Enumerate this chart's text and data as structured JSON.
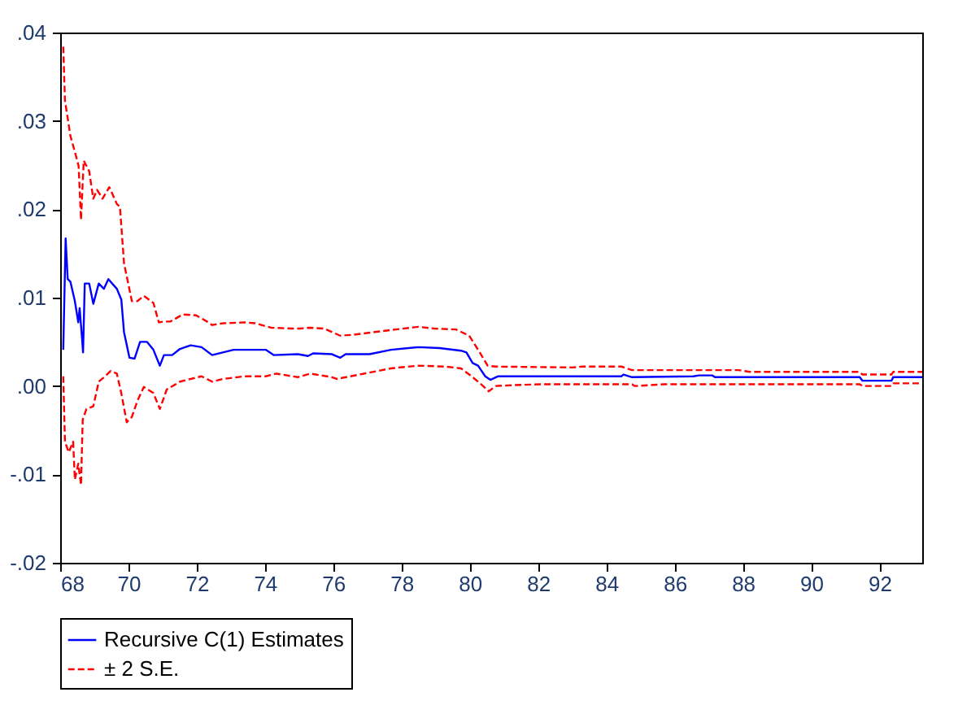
{
  "chart_data": {
    "type": "line",
    "xlim": [
      68,
      93.25
    ],
    "ylim": [
      -0.02,
      0.04
    ],
    "xticks": [
      68,
      70,
      72,
      74,
      76,
      78,
      80,
      82,
      84,
      86,
      88,
      90,
      92
    ],
    "yticks": [
      {
        "value": -0.02,
        "label": "-.02"
      },
      {
        "value": -0.01,
        "label": "-.01"
      },
      {
        "value": 0,
        "label": ".00"
      },
      {
        "value": 0.01,
        "label": ".01"
      },
      {
        "value": 0.02,
        "label": ".02"
      },
      {
        "value": 0.03,
        "label": ".03"
      },
      {
        "value": 0.04,
        "label": ".04"
      }
    ],
    "grid": false,
    "legend": "bottom",
    "marker": "none",
    "series": [
      {
        "name": "Recursive C(1) Estimates",
        "color": "#0000ff",
        "line_style": "solid",
        "x": [
          68.09,
          68.16,
          68.22,
          68.3,
          68.43,
          68.53,
          68.57,
          68.64,
          68.67,
          68.72,
          68.85,
          68.97,
          69.13,
          69.28,
          69.41,
          69.66,
          69.79,
          69.87,
          70.03,
          70.18,
          70.34,
          70.54,
          70.73,
          70.92,
          71.04,
          71.28,
          71.51,
          71.82,
          72.14,
          72.45,
          73.08,
          74.02,
          74.26,
          74.96,
          75.26,
          75.41,
          75.96,
          76.2,
          76.36,
          77.06,
          77.69,
          78.49,
          79.11,
          79.74,
          79.9,
          80.08,
          80.24,
          80.45,
          80.6,
          80.83,
          84.44,
          84.5,
          84.75,
          86.55,
          86.71,
          87.1,
          87.18,
          91.42,
          91.5,
          92.35,
          92.4,
          93.25
        ],
        "values": [
          0.0041,
          0.0167,
          0.0121,
          0.0118,
          0.0096,
          0.0072,
          0.0088,
          0.0054,
          0.0038,
          0.0116,
          0.0116,
          0.0093,
          0.0116,
          0.011,
          0.0121,
          0.011,
          0.0098,
          0.0061,
          0.0032,
          0.0031,
          0.005,
          0.005,
          0.0041,
          0.0023,
          0.0035,
          0.0035,
          0.0042,
          0.0046,
          0.0044,
          0.0035,
          0.0041,
          0.0041,
          0.0035,
          0.0036,
          0.0034,
          0.0037,
          0.0036,
          0.0032,
          0.0036,
          0.0036,
          0.0041,
          0.0044,
          0.0043,
          0.004,
          0.0038,
          0.0026,
          0.0023,
          0.0011,
          0.0007,
          0.0011,
          0.0011,
          0.0013,
          0.001,
          0.0011,
          0.0012,
          0.0012,
          0.001,
          0.001,
          0.0006,
          0.0006,
          0.001,
          0.001
        ]
      },
      {
        "name": "± 2 S.E.",
        "color": "#ff0000",
        "line_style": "dashed",
        "x": [
          68.09,
          68.14,
          68.3,
          68.43,
          68.54,
          68.61,
          68.69,
          68.85,
          68.97,
          69.08,
          69.24,
          69.44,
          69.66,
          69.75,
          69.87,
          70.1,
          70.26,
          70.45,
          70.73,
          70.89,
          71.04,
          71.23,
          71.59,
          71.98,
          72.3,
          72.45,
          72.77,
          73.4,
          73.71,
          74.18,
          74.8,
          75.02,
          75.33,
          75.73,
          76.2,
          76.59,
          77.61,
          78.49,
          78.96,
          79.59,
          79.98,
          80.29,
          80.52,
          80.76,
          83.0,
          83.3,
          84.44,
          84.75,
          87.88,
          88.2,
          91.42,
          91.5,
          92.35,
          92.4,
          93.25
        ],
        "values": [
          0.0384,
          0.0323,
          0.0283,
          0.0265,
          0.0249,
          0.0188,
          0.0255,
          0.0243,
          0.0212,
          0.0222,
          0.0212,
          0.0225,
          0.0206,
          0.0203,
          0.0139,
          0.0096,
          0.0096,
          0.0102,
          0.0094,
          0.0072,
          0.0073,
          0.0073,
          0.0081,
          0.008,
          0.0073,
          0.0069,
          0.0071,
          0.0072,
          0.0071,
          0.0066,
          0.0065,
          0.0065,
          0.0066,
          0.0065,
          0.0057,
          0.0058,
          0.0063,
          0.0067,
          0.0065,
          0.0064,
          0.0057,
          0.0038,
          0.0023,
          0.0022,
          0.0021,
          0.0022,
          0.0022,
          0.0018,
          0.0018,
          0.0016,
          0.0016,
          0.0013,
          0.0013,
          0.0016,
          0.0016
        ]
      },
      {
        "color": "#ff0000",
        "line_style": "dashed",
        "x": [
          68.09,
          68.14,
          68.25,
          68.38,
          68.43,
          68.53,
          68.61,
          68.66,
          68.77,
          68.97,
          69.13,
          69.32,
          69.48,
          69.66,
          69.79,
          69.95,
          70.1,
          70.26,
          70.45,
          70.73,
          70.92,
          71.12,
          71.51,
          72.14,
          72.45,
          72.77,
          73.4,
          74.02,
          74.33,
          74.96,
          75.33,
          75.96,
          76.1,
          76.9,
          77.69,
          78.49,
          79.27,
          79.74,
          80.05,
          80.36,
          80.55,
          80.76,
          81.31,
          82.1,
          84.75,
          84.83,
          85.69,
          91.42,
          91.5,
          92.35,
          92.4,
          93.25
        ],
        "values": [
          0.0011,
          -0.0063,
          -0.0075,
          -0.0063,
          -0.0106,
          -0.0088,
          -0.0112,
          -0.0038,
          -0.0026,
          -0.0023,
          0.0005,
          0.0011,
          0.0017,
          0.0014,
          -0.0008,
          -0.0041,
          -0.0035,
          -0.0017,
          -0.0001,
          -0.0008,
          -0.0026,
          -0.0004,
          0.0005,
          0.0011,
          0.0005,
          0.0008,
          0.0011,
          0.0011,
          0.0014,
          0.001,
          0.0014,
          0.001,
          0.0008,
          0.0014,
          0.002,
          0.0023,
          0.0022,
          0.002,
          0.0011,
          0.0001,
          -0.0006,
          0,
          0.0001,
          0.0002,
          0.0002,
          0,
          0.0002,
          0.0002,
          0,
          0,
          0.0003,
          0.0003
        ]
      }
    ]
  }
}
